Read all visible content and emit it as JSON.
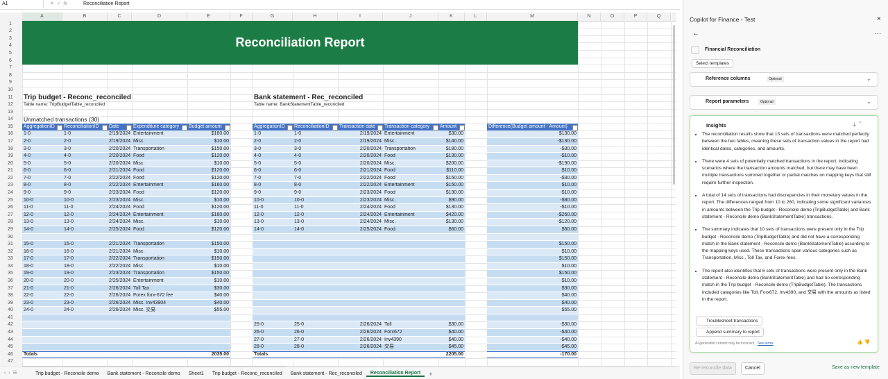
{
  "toolbar": {
    "name_box": "A1",
    "formula": "Reconciliation Report"
  },
  "columns": [
    "A",
    "B",
    "C",
    "D",
    "E",
    "F",
    "G",
    "H",
    "I",
    "J",
    "K",
    "L",
    "M",
    "N",
    "O",
    "P",
    "Q"
  ],
  "row_numbers": [
    1,
    2,
    3,
    4,
    5,
    6,
    7,
    8,
    9,
    10,
    11,
    12,
    13,
    14,
    15,
    16,
    17,
    18,
    19,
    20,
    21,
    22,
    23,
    24,
    25,
    26,
    27,
    28,
    29,
    30,
    31,
    32,
    33,
    34,
    35,
    36,
    37,
    38,
    39,
    40,
    41,
    42,
    43,
    44,
    45,
    46,
    47
  ],
  "report": {
    "title": "Reconciliation Report",
    "unmatched": "Unmatched transactions (30)",
    "trip": {
      "title": "Trip budget - Reconc_reconciled",
      "table_name": "Table name: TripBudgetTable_reconciled",
      "headers": [
        "AggregationID",
        "ReconciliationID",
        "Date",
        "Expenditure category",
        "Budget amount"
      ],
      "rows": [
        [
          "1-0",
          "1-0",
          "2/19/2024",
          "Entertainment",
          "$160.00"
        ],
        [
          "2-0",
          "2-0",
          "2/19/2024",
          "Misc.",
          "$10.00"
        ],
        [
          "3-0",
          "3-0",
          "2/20/2024",
          "Transportation",
          "$150.00"
        ],
        [
          "4-0",
          "4-0",
          "2/20/2024",
          "Food",
          "$120.00"
        ],
        [
          "5-0",
          "5-0",
          "2/20/2024",
          "Misc.",
          "$10.00"
        ],
        [
          "6-0",
          "6-0",
          "2/21/2024",
          "Food",
          "$120.00"
        ],
        [
          "7-0",
          "7-0",
          "2/22/2024",
          "Food",
          "$120.00"
        ],
        [
          "8-0",
          "8-0",
          "2/22/2024",
          "Entertainment",
          "$160.00"
        ],
        [
          "9-0",
          "9-0",
          "2/23/2024",
          "Food",
          "$120.00"
        ],
        [
          "10-0",
          "10-0",
          "2/23/2024",
          "Misc.",
          "$10.00"
        ],
        [
          "11-0",
          "11-0",
          "2/24/2024",
          "Food",
          "$120.00"
        ],
        [
          "12-0",
          "12-0",
          "2/24/2024",
          "Entertainment",
          "$160.00"
        ],
        [
          "13-0",
          "13-0",
          "2/24/2024",
          "Misc.",
          "$10.00"
        ],
        [
          "14-0",
          "14-0",
          "2/25/2024",
          "Food",
          "$120.00"
        ],
        null,
        [
          "15-0",
          "15-0",
          "2/21/2024",
          "Transportation",
          "$150.00"
        ],
        [
          "16-0",
          "16-0",
          "2/21/2024",
          "Misc.",
          "$10.00"
        ],
        [
          "17-0",
          "17-0",
          "2/22/2024",
          "Transportation",
          "$150.00"
        ],
        [
          "18-0",
          "18-0",
          "2/22/2024",
          "Misc.",
          "$10.00"
        ],
        [
          "19-0",
          "19-0",
          "2/23/2024",
          "Transportation",
          "$150.00"
        ],
        [
          "20-0",
          "20-0",
          "2/25/2024",
          "Entertainment",
          "$10.00"
        ],
        [
          "21-0",
          "21-0",
          "2/26/2024",
          "Toll Tax",
          "$30.00"
        ],
        [
          "22-0",
          "22-0",
          "2/26/2024",
          "Forex forx-672 fee",
          "$40.00"
        ],
        [
          "23-0",
          "23-0",
          "2/26/2024",
          "Misc. Inv43904",
          "$40.00"
        ],
        [
          "24-0",
          "24-0",
          "2/26/2024",
          "Misc. 交易",
          "$55.00"
        ],
        null,
        null,
        null,
        null,
        null
      ],
      "totals_label": "Totals",
      "total": "2035.00"
    },
    "bank": {
      "title": "Bank statement - Rec_reconciled",
      "table_name": "Table name: BankStatementTable_reconciled",
      "headers": [
        "AggregationID",
        "ReconciliationID",
        "Transaction date",
        "Transaction category",
        "Amount"
      ],
      "rows": [
        [
          "1-0",
          "1-0",
          "2/19/2024",
          "Entertainment",
          "$30.00"
        ],
        [
          "2-0",
          "2-0",
          "2/19/2024",
          "Misc.",
          "$140.00"
        ],
        [
          "3-0",
          "3-0",
          "2/20/2024",
          "Transportation",
          "$180.00"
        ],
        [
          "4-0",
          "4-0",
          "2/20/2024",
          "Food",
          "$130.00"
        ],
        [
          "5-0",
          "5-0",
          "2/20/2024",
          "Misc.",
          "$200.00"
        ],
        [
          "6-0",
          "6-0",
          "2/21/2024",
          "Food",
          "$110.00"
        ],
        [
          "7-0",
          "7-0",
          "2/22/2024",
          "Food",
          "$150.00"
        ],
        [
          "8-0",
          "8-0",
          "2/22/2024",
          "Entertainment",
          "$150.00"
        ],
        [
          "9-0",
          "9-0",
          "2/23/2024",
          "Food",
          "$130.00"
        ],
        [
          "10-0",
          "10-0",
          "2/23/2024",
          "Misc.",
          "$90.00"
        ],
        [
          "11-0",
          "11-0",
          "2/24/2024",
          "Food",
          "$130.00"
        ],
        [
          "12-0",
          "12-0",
          "2/24/2024",
          "Entertainment",
          "$420.00"
        ],
        [
          "13-0",
          "13-0",
          "2/24/2024",
          "Misc.",
          "$130.00"
        ],
        [
          "14-0",
          "14-0",
          "2/25/2024",
          "Food",
          "$60.00"
        ],
        null,
        null,
        null,
        null,
        null,
        null,
        null,
        null,
        null,
        null,
        null,
        null,
        [
          "25-0",
          "25-0",
          "2/26/2024",
          "Toll",
          "$30.00"
        ],
        [
          "26-0",
          "26-0",
          "2/26/2024",
          "Forx672",
          "$40.00"
        ],
        [
          "27-0",
          "27-0",
          "2/26/2024",
          "Inv4390",
          "$40.00"
        ],
        [
          "28-0",
          "28-0",
          "2/26/2024",
          "交易",
          "$45.00"
        ]
      ],
      "totals_label": "Totals",
      "total": "2205.00"
    },
    "difference": {
      "header": "Difference(Budget amount - Amount)",
      "values": [
        "$130.00",
        "-$130.00",
        "-$30.00",
        "-$10.00",
        "-$190.00",
        "$10.00",
        "-$30.00",
        "$10.00",
        "-$10.00",
        "-$80.00",
        "-$10.00",
        "-$260.00",
        "-$120.00",
        "$60.00",
        null,
        "$150.00",
        "$10.00",
        "$150.00",
        "$10.00",
        "$150.00",
        "$10.00",
        "$30.00",
        "$40.00",
        "$40.00",
        "$55.00",
        null,
        "-$30.00",
        "-$40.00",
        "-$40.00",
        "-$45.00"
      ],
      "total": "-170.00"
    }
  },
  "sheet_tabs": [
    "Trip budget - Reconcile demo",
    "Bank statement - Reconcile demo",
    "Sheet1",
    "Trip budget - Reconc_reconciled",
    "Bank statement - Rec_reconciled",
    "Reconciliation Report"
  ],
  "panel": {
    "title": "Copilot for Finance - Test",
    "section": "Financial Reconciliation",
    "select_templates": "Select templates",
    "reference_columns": "Reference columns",
    "report_parameters": "Report parameters",
    "optional": "Optional",
    "insights": {
      "title": "Insights",
      "bullets": [
        "The reconciliation results show that 13 sets of transactions were matched perfectly between the two tables, meaning these sets of transaction values in the report had identical dates, categories, and amounts.",
        "There were 4 sets of potentially matched transactions in the report, indicating scenarios where the transaction amounts matched, but there may have been multiple transactions summed together or partial matches on mapping keys that still require further inspection.",
        "A total of 14 sets of transactions had discrepancies in their monetary values in the report. The differences ranged from 10 to 260, indicating some significant variances in amounts between the Trip budget - Reconcile demo (TripBudgetTable) and Bank statement - Reconcile demo (BankStatementTable) transactions.",
        "The summary indicates that 10 sets of transactions were present only in the Trip budget - Reconcile demo (TripBudgetTable) and did not have a corresponding match in the Bank statement - Reconcile demo (BankStatementTable) according to the mapping keys used. These transactions span various categories such as Transportation, Misc., Toll Tax, and Forex fees.",
        "The report also identifies that 6 sets of transactions were present only in the Bank statement - Reconcile demo (BankStatementTable) and had no corresponding match in the Trip budget - Reconcile demo (TripBudgetTable). The transactions included categories like Toll, Forx672, Inv4390, and 交易 with the amounts as listed in the report."
      ]
    },
    "troubleshoot": "Troubleshoot transactions",
    "append": "Append summary to report",
    "disclaimer": "AI-generated content may be incorrect.",
    "see_terms": "See terms",
    "rereconcile": "Re-reconcile data",
    "cancel": "Cancel",
    "save_template": "Save as new template"
  }
}
